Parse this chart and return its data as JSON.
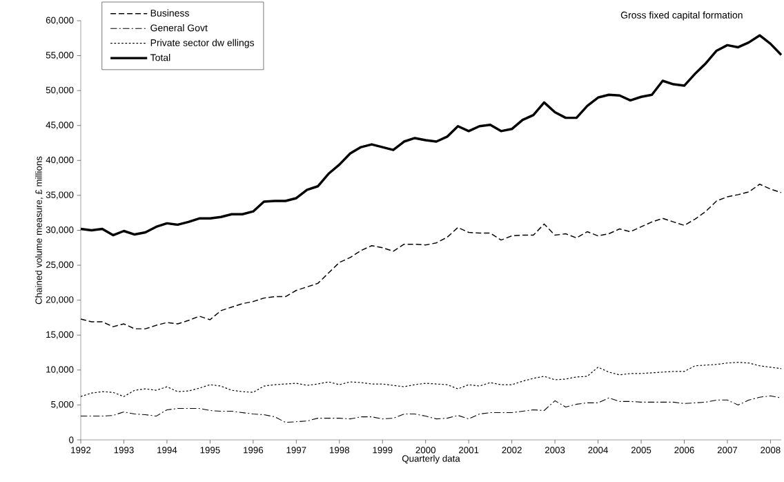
{
  "chart_data": {
    "type": "line",
    "title": "Gross fixed capital formation",
    "xlabel": "Quarterly data",
    "ylabel": "Chained volume measure, £ millions",
    "x": [
      1992,
      1992.25,
      1992.5,
      1992.75,
      1993,
      1993.25,
      1993.5,
      1993.75,
      1994,
      1994.25,
      1994.5,
      1994.75,
      1995,
      1995.25,
      1995.5,
      1995.75,
      1996,
      1996.25,
      1996.5,
      1996.75,
      1997,
      1997.25,
      1997.5,
      1997.75,
      1998,
      1998.25,
      1998.5,
      1998.75,
      1999,
      1999.25,
      1999.5,
      1999.75,
      2000,
      2000.25,
      2000.5,
      2000.75,
      2001,
      2001.25,
      2001.5,
      2001.75,
      2002,
      2002.25,
      2002.5,
      2002.75,
      2003,
      2003.25,
      2003.5,
      2003.75,
      2004,
      2004.25,
      2004.5,
      2004.75,
      2005,
      2005.25,
      2005.5,
      2005.75,
      2006,
      2006.25,
      2006.5,
      2006.75,
      2007,
      2007.25,
      2007.5,
      2007.75,
      2008,
      2008.25
    ],
    "series": [
      {
        "name": "Business",
        "color": "#000000",
        "line_style": "dashed",
        "values": [
          17300,
          16900,
          16900,
          16200,
          16600,
          15900,
          15900,
          16400,
          16800,
          16600,
          17100,
          17700,
          17200,
          18500,
          19000,
          19500,
          19800,
          20300,
          20500,
          20500,
          21400,
          21900,
          22400,
          23900,
          25400,
          26100,
          27100,
          27800,
          27500,
          27000,
          28000,
          28000,
          27900,
          28200,
          29000,
          30400,
          29700,
          29600,
          29600,
          28600,
          29200,
          29300,
          29300,
          30900,
          29300,
          29500,
          28900,
          29800,
          29200,
          29500,
          30200,
          29800,
          30500,
          31200,
          31700,
          31200,
          30700,
          31600,
          32700,
          34200,
          34800,
          35100,
          35500,
          36600,
          35900,
          35400
        ]
      },
      {
        "name": "General Govt",
        "color": "#000000",
        "line_style": "dashdot",
        "values": [
          3400,
          3400,
          3400,
          3500,
          4000,
          3700,
          3600,
          3400,
          4300,
          4500,
          4500,
          4500,
          4200,
          4100,
          4100,
          3900,
          3700,
          3600,
          3300,
          2500,
          2600,
          2700,
          3100,
          3100,
          3100,
          3000,
          3300,
          3300,
          3000,
          3100,
          3700,
          3700,
          3400,
          3000,
          3100,
          3500,
          3000,
          3700,
          3900,
          3900,
          3900,
          4100,
          4300,
          4200,
          5600,
          4700,
          5100,
          5300,
          5300,
          6000,
          5500,
          5500,
          5400,
          5400,
          5400,
          5400,
          5200,
          5300,
          5400,
          5700,
          5700,
          5000,
          5700,
          6100,
          6300,
          6000
        ]
      },
      {
        "name": "Private sector dw ellings",
        "color": "#000000",
        "line_style": "dotted",
        "values": [
          6200,
          6700,
          6900,
          6800,
          6200,
          7100,
          7300,
          7100,
          7600,
          6900,
          7000,
          7400,
          7900,
          7700,
          7100,
          6900,
          6800,
          7700,
          7900,
          8000,
          8100,
          7800,
          8000,
          8300,
          7900,
          8300,
          8200,
          8000,
          8000,
          7800,
          7600,
          7900,
          8100,
          8000,
          7900,
          7300,
          7900,
          7700,
          8200,
          7900,
          7900,
          8400,
          8800,
          9100,
          8600,
          8700,
          9000,
          9100,
          10400,
          9700,
          9300,
          9500,
          9500,
          9600,
          9700,
          9800,
          9800,
          10600,
          10700,
          10800,
          11000,
          11100,
          11000,
          10600,
          10400,
          10200
        ]
      },
      {
        "name": "Total",
        "color": "#000000",
        "line_style": "solid",
        "values": [
          30200,
          30000,
          30200,
          29300,
          29900,
          29400,
          29700,
          30500,
          31000,
          30800,
          31200,
          31700,
          31700,
          31900,
          32300,
          32300,
          32700,
          34100,
          34200,
          34200,
          34600,
          35800,
          36300,
          38100,
          39400,
          41000,
          41900,
          42300,
          41900,
          41500,
          42700,
          43200,
          42900,
          42700,
          43400,
          44900,
          44200,
          44900,
          45100,
          44200,
          44500,
          45800,
          46500,
          48300,
          46900,
          46100,
          46100,
          47800,
          49000,
          49400,
          49300,
          48600,
          49100,
          49400,
          51400,
          50900,
          50700,
          52400,
          53900,
          55700,
          56500,
          56200,
          56900,
          57900,
          56700,
          55100
        ]
      }
    ],
    "xlim": [
      1992,
      2008.25
    ],
    "xticks": [
      1992,
      1993,
      1994,
      1995,
      1996,
      1997,
      1998,
      1999,
      2000,
      2001,
      2002,
      2003,
      2004,
      2005,
      2006,
      2007,
      2008
    ],
    "ylim": [
      0,
      60000
    ],
    "yticks": [
      0,
      {
        "value": 5000,
        "label": "5,000"
      },
      {
        "value": 10000,
        "label": "10,000"
      },
      {
        "value": 15000,
        "label": "15,000"
      },
      {
        "value": 20000,
        "label": "20,000"
      },
      {
        "value": 25000,
        "label": "25,000"
      },
      {
        "value": 30000,
        "label": "30,000"
      },
      {
        "value": 35000,
        "label": "35,000"
      },
      {
        "value": 40000,
        "label": "40,000"
      },
      {
        "value": 45000,
        "label": "45,000"
      },
      {
        "value": 50000,
        "label": "50,000"
      },
      {
        "value": 55000,
        "label": "55,000"
      },
      {
        "value": 60000,
        "label": "60,000"
      }
    ],
    "legend": "top left"
  }
}
